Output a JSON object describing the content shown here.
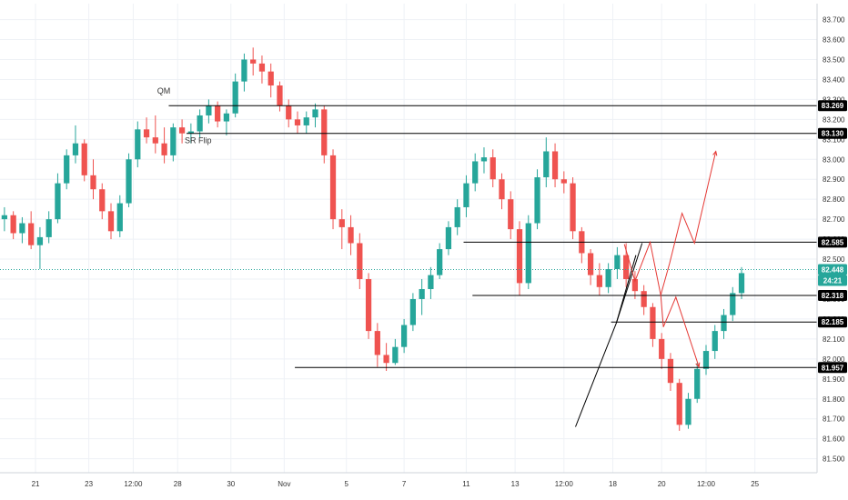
{
  "chart_data": {
    "type": "candlestick",
    "title": "",
    "xlabel": "",
    "ylabel": "",
    "ylim": [
      81.43,
      83.78
    ],
    "xlim": [
      0,
      92
    ],
    "grid": true,
    "colors": {
      "up": "#26a69a",
      "down": "#ef5350",
      "level_line": "#000000",
      "current_line": "#26a69a",
      "projection": "#e53935",
      "trendline": "#000000",
      "grid": "#eef1f6",
      "current_tag": "#26a69a",
      "timer_tag": "#26a69a"
    },
    "y_ticks": [
      {
        "v": 83.7,
        "label": "83.700"
      },
      {
        "v": 83.6,
        "label": "83.600"
      },
      {
        "v": 83.5,
        "label": "83.500"
      },
      {
        "v": 83.4,
        "label": "83.400"
      },
      {
        "v": 83.3,
        "label": "83.300"
      },
      {
        "v": 83.2,
        "label": "83.200"
      },
      {
        "v": 83.1,
        "label": "83.100"
      },
      {
        "v": 83.0,
        "label": "83.000"
      },
      {
        "v": 82.9,
        "label": "82.900"
      },
      {
        "v": 82.8,
        "label": "82.800"
      },
      {
        "v": 82.7,
        "label": "82.700"
      },
      {
        "v": 82.6,
        "label": "82.600"
      },
      {
        "v": 82.5,
        "label": "82.500"
      },
      {
        "v": 82.4,
        "label": "82.400"
      },
      {
        "v": 82.3,
        "label": "82.300"
      },
      {
        "v": 82.2,
        "label": "82.200"
      },
      {
        "v": 82.1,
        "label": "82.100"
      },
      {
        "v": 82.0,
        "label": "82.000"
      },
      {
        "v": 81.9,
        "label": "81.900"
      },
      {
        "v": 81.8,
        "label": "81.800"
      },
      {
        "v": 81.7,
        "label": "81.700"
      },
      {
        "v": 81.6,
        "label": "81.600"
      },
      {
        "v": 81.5,
        "label": "81.500"
      }
    ],
    "x_ticks": [
      {
        "x": 4,
        "label": "21"
      },
      {
        "x": 10,
        "label": "23"
      },
      {
        "x": 15,
        "label": "12:00"
      },
      {
        "x": 20,
        "label": "28"
      },
      {
        "x": 26,
        "label": "30"
      },
      {
        "x": 32,
        "label": "Nov"
      },
      {
        "x": 39,
        "label": "5"
      },
      {
        "x": 45.5,
        "label": "7"
      },
      {
        "x": 52.5,
        "label": "11"
      },
      {
        "x": 58,
        "label": "13"
      },
      {
        "x": 63.5,
        "label": "12:00"
      },
      {
        "x": 69,
        "label": "18"
      },
      {
        "x": 74.5,
        "label": "20"
      },
      {
        "x": 79.5,
        "label": "12:00"
      },
      {
        "x": 85,
        "label": "25"
      }
    ],
    "x_grid": [
      4,
      10,
      15,
      20,
      26,
      32,
      39,
      45.5,
      52.5,
      58,
      63.5,
      69,
      74.5,
      79.5,
      85
    ],
    "levels": [
      {
        "y": 83.269,
        "label": "83.269",
        "x_start": 19
      },
      {
        "y": 83.13,
        "label": "83.130",
        "x_start": 21
      },
      {
        "y": 82.585,
        "label": "82.585",
        "x_start": 52.2
      },
      {
        "y": 82.318,
        "label": "82.318",
        "x_start": 53.2
      },
      {
        "y": 82.185,
        "label": "82.185",
        "x_start": 68.8
      },
      {
        "y": 81.957,
        "label": "81.957",
        "x_start": 33.2
      }
    ],
    "current_price": {
      "y": 82.448,
      "label": "82.448",
      "timer": "24:21"
    },
    "annotations": [
      {
        "text": "QM",
        "x": 17.7,
        "y": 83.33
      },
      {
        "text": "SR Flip",
        "x": 20.8,
        "y": 83.08
      }
    ],
    "trendlines": [
      [
        [
          64.8,
          81.66
        ],
        [
          69.4,
          82.18
        ],
        [
          71.6,
          82.52
        ]
      ],
      [
        [
          69.4,
          82.18
        ],
        [
          72.3,
          82.58
        ]
      ]
    ],
    "projections": [
      [
        [
          70.3,
          82.575
        ],
        [
          71.5,
          82.39
        ],
        [
          73.2,
          82.585
        ],
        [
          74.4,
          82.32
        ],
        [
          75.4,
          82.48
        ],
        [
          76.8,
          82.73
        ],
        [
          78.2,
          82.58
        ],
        [
          80.6,
          83.04
        ]
      ],
      [
        [
          74.4,
          82.32
        ],
        [
          74.7,
          82.16
        ],
        [
          76.1,
          82.31
        ],
        [
          78.7,
          81.96
        ]
      ]
    ],
    "candles": [
      [
        82.7,
        82.76,
        82.64,
        82.72
      ],
      [
        82.72,
        82.74,
        82.6,
        82.63
      ],
      [
        82.63,
        82.71,
        82.58,
        82.68
      ],
      [
        82.68,
        82.74,
        82.55,
        82.57
      ],
      [
        82.57,
        82.66,
        82.45,
        82.61
      ],
      [
        82.61,
        82.74,
        82.58,
        82.7
      ],
      [
        82.7,
        82.93,
        82.68,
        82.88
      ],
      [
        82.88,
        83.05,
        82.85,
        83.02
      ],
      [
        83.02,
        83.17,
        82.98,
        83.08
      ],
      [
        83.08,
        83.1,
        82.89,
        82.92
      ],
      [
        82.92,
        83.0,
        82.8,
        82.85
      ],
      [
        82.85,
        82.88,
        82.7,
        82.74
      ],
      [
        82.74,
        82.78,
        82.6,
        82.64
      ],
      [
        82.64,
        82.82,
        82.61,
        82.78
      ],
      [
        82.78,
        83.03,
        82.76,
        83.0
      ],
      [
        83.0,
        83.19,
        82.96,
        83.15
      ],
      [
        83.15,
        83.21,
        83.08,
        83.11
      ],
      [
        83.11,
        83.22,
        83.03,
        83.08
      ],
      [
        83.08,
        83.16,
        82.98,
        83.02
      ],
      [
        83.02,
        83.18,
        82.99,
        83.16
      ],
      [
        83.16,
        83.2,
        83.08,
        83.13
      ],
      [
        83.13,
        83.18,
        83.08,
        83.14
      ],
      [
        83.14,
        83.25,
        83.11,
        83.22
      ],
      [
        83.22,
        83.3,
        83.18,
        83.27
      ],
      [
        83.27,
        83.29,
        83.16,
        83.19
      ],
      [
        83.19,
        83.25,
        83.12,
        83.23
      ],
      [
        83.23,
        83.43,
        83.21,
        83.39
      ],
      [
        83.39,
        83.53,
        83.34,
        83.5
      ],
      [
        83.5,
        83.56,
        83.42,
        83.48
      ],
      [
        83.48,
        83.52,
        83.38,
        83.44
      ],
      [
        83.44,
        83.48,
        83.31,
        83.37
      ],
      [
        83.37,
        83.39,
        83.24,
        83.27
      ],
      [
        83.27,
        83.3,
        83.16,
        83.2
      ],
      [
        83.2,
        83.24,
        83.13,
        83.17
      ],
      [
        83.17,
        83.24,
        83.13,
        83.21
      ],
      [
        83.21,
        83.28,
        83.16,
        83.25
      ],
      [
        83.25,
        83.27,
        82.98,
        83.02
      ],
      [
        83.02,
        83.05,
        82.65,
        82.7
      ],
      [
        82.7,
        82.75,
        82.55,
        82.66
      ],
      [
        82.66,
        82.72,
        82.52,
        82.58
      ],
      [
        82.58,
        82.63,
        82.35,
        82.4
      ],
      [
        82.4,
        82.43,
        82.1,
        82.14
      ],
      [
        82.14,
        82.18,
        81.96,
        82.02
      ],
      [
        82.02,
        82.08,
        81.94,
        81.98
      ],
      [
        81.98,
        82.1,
        81.97,
        82.06
      ],
      [
        82.06,
        82.2,
        82.03,
        82.17
      ],
      [
        82.17,
        82.33,
        82.14,
        82.3
      ],
      [
        82.3,
        82.4,
        82.22,
        82.35
      ],
      [
        82.35,
        82.46,
        82.3,
        82.42
      ],
      [
        82.42,
        82.58,
        82.4,
        82.55
      ],
      [
        82.55,
        82.69,
        82.52,
        82.66
      ],
      [
        82.66,
        82.8,
        82.62,
        82.76
      ],
      [
        82.76,
        82.92,
        82.71,
        82.88
      ],
      [
        82.88,
        83.03,
        82.84,
        82.99
      ],
      [
        82.99,
        83.06,
        82.93,
        83.01
      ],
      [
        83.01,
        83.05,
        82.86,
        82.9
      ],
      [
        82.9,
        82.93,
        82.75,
        82.8
      ],
      [
        82.8,
        82.84,
        82.6,
        82.65
      ],
      [
        82.65,
        82.69,
        82.32,
        82.38
      ],
      [
        82.38,
        82.72,
        82.35,
        82.68
      ],
      [
        82.68,
        82.95,
        82.65,
        82.91
      ],
      [
        82.91,
        83.11,
        82.86,
        83.04
      ],
      [
        83.04,
        83.08,
        82.86,
        82.9
      ],
      [
        82.9,
        82.94,
        82.83,
        82.88
      ],
      [
        82.88,
        82.91,
        82.6,
        82.64
      ],
      [
        82.64,
        82.66,
        82.48,
        82.53
      ],
      [
        82.53,
        82.55,
        82.37,
        82.42
      ],
      [
        82.42,
        82.48,
        82.32,
        82.36
      ],
      [
        82.36,
        82.48,
        82.33,
        82.45
      ],
      [
        82.45,
        82.56,
        82.4,
        82.52
      ],
      [
        82.52,
        82.58,
        82.36,
        82.4
      ],
      [
        82.4,
        82.44,
        82.3,
        82.34
      ],
      [
        82.34,
        82.37,
        82.22,
        82.26
      ],
      [
        82.26,
        82.28,
        82.06,
        82.1
      ],
      [
        82.1,
        82.13,
        81.95,
        82.0
      ],
      [
        82.0,
        82.03,
        81.84,
        81.88
      ],
      [
        81.88,
        81.9,
        81.64,
        81.67
      ],
      [
        81.67,
        81.83,
        81.65,
        81.8
      ],
      [
        81.8,
        81.98,
        81.78,
        81.95
      ],
      [
        81.95,
        82.07,
        81.92,
        82.04
      ],
      [
        82.04,
        82.17,
        82.0,
        82.14
      ],
      [
        82.14,
        82.25,
        82.1,
        82.22
      ],
      [
        82.22,
        82.36,
        82.19,
        82.33
      ],
      [
        82.33,
        82.46,
        82.3,
        82.43
      ]
    ]
  }
}
